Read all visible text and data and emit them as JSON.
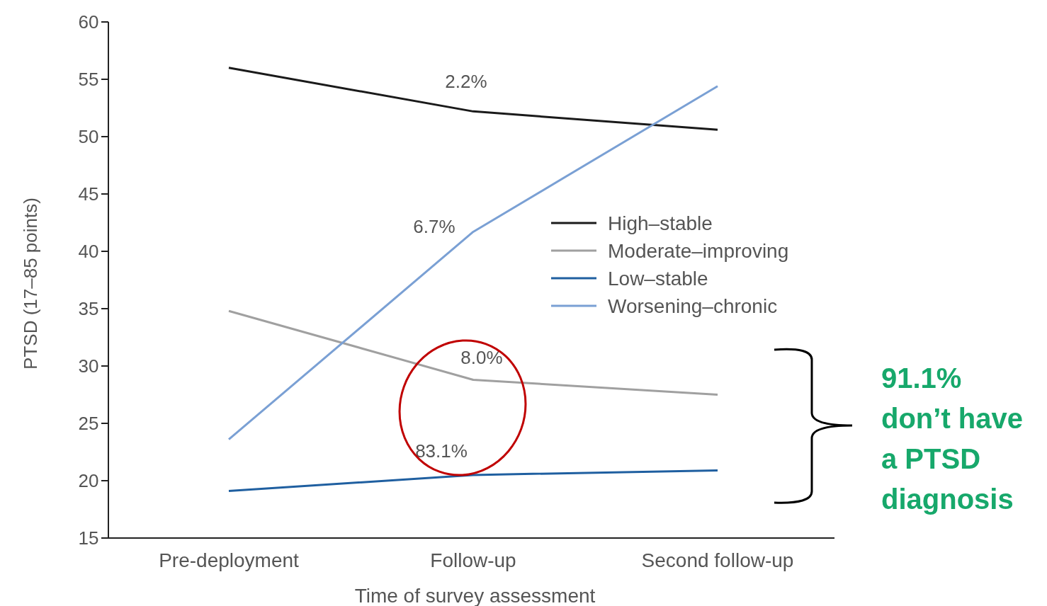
{
  "chart_data": {
    "type": "line",
    "xlabel": "Time of survey assessment",
    "ylabel": "PTSD (17–85 points)",
    "categories": [
      "Pre-deployment",
      "Follow-up",
      "Second follow-up"
    ],
    "series": [
      {
        "name": "High–stable",
        "color": "#1a1a1a",
        "values": [
          56.0,
          52.2,
          50.6
        ]
      },
      {
        "name": "Moderate–improving",
        "color": "#a0a0a0",
        "values": [
          34.8,
          28.8,
          27.5
        ]
      },
      {
        "name": "Low–stable",
        "color": "#1f5fa0",
        "values": [
          19.1,
          20.5,
          20.9
        ]
      },
      {
        "name": "Worsening–chronic",
        "color": "#7aa0d4",
        "values": [
          23.6,
          41.7,
          54.4
        ]
      }
    ],
    "ylim": [
      15,
      60
    ],
    "yticks": [
      15,
      20,
      25,
      30,
      35,
      40,
      45,
      50,
      55,
      60
    ],
    "legend": "right",
    "marker": "none",
    "line_style": "solid",
    "grid": false,
    "annotations": [
      "2.2%",
      "6.7%",
      "8.0%",
      "83.1%",
      "91.1% don’t have a PTSD diagnosis"
    ]
  }
}
